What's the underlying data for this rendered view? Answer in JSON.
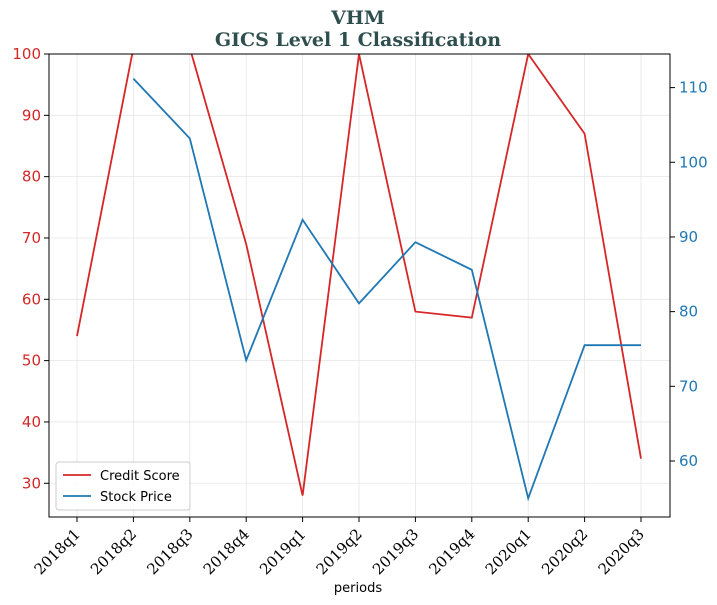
{
  "chart_data": {
    "type": "line",
    "title": "VHM",
    "subtitle": "GICS Level 1 Classification",
    "xlabel": "periods",
    "categories": [
      "2018q1",
      "2018q2",
      "2018q3",
      "2018q4",
      "2019q1",
      "2019q2",
      "2019q3",
      "2019q4",
      "2020q1",
      "2020q2",
      "2020q3"
    ],
    "left_axis": {
      "ylim": [
        24.5,
        100
      ],
      "ticks": [
        30,
        40,
        50,
        60,
        70,
        80,
        90,
        100
      ],
      "color": "#d62728"
    },
    "right_axis": {
      "ylim": [
        52.5,
        114.5
      ],
      "ticks": [
        60,
        70,
        80,
        90,
        100,
        110
      ],
      "color": "#1f77b4"
    },
    "series": [
      {
        "name": "Credit Score",
        "axis": "left",
        "color": "#d62728",
        "values": [
          54,
          101,
          101,
          69,
          28,
          100,
          58,
          57,
          100,
          87,
          34
        ]
      },
      {
        "name": "Stock Price",
        "axis": "right",
        "color": "#1f77b4",
        "values": [
          null,
          111.2,
          103.2,
          73.5,
          92.3,
          81.1,
          89.3,
          85.6,
          55.0,
          75.5,
          75.5
        ]
      }
    ],
    "grid": true,
    "legend_position": "lower-left"
  }
}
